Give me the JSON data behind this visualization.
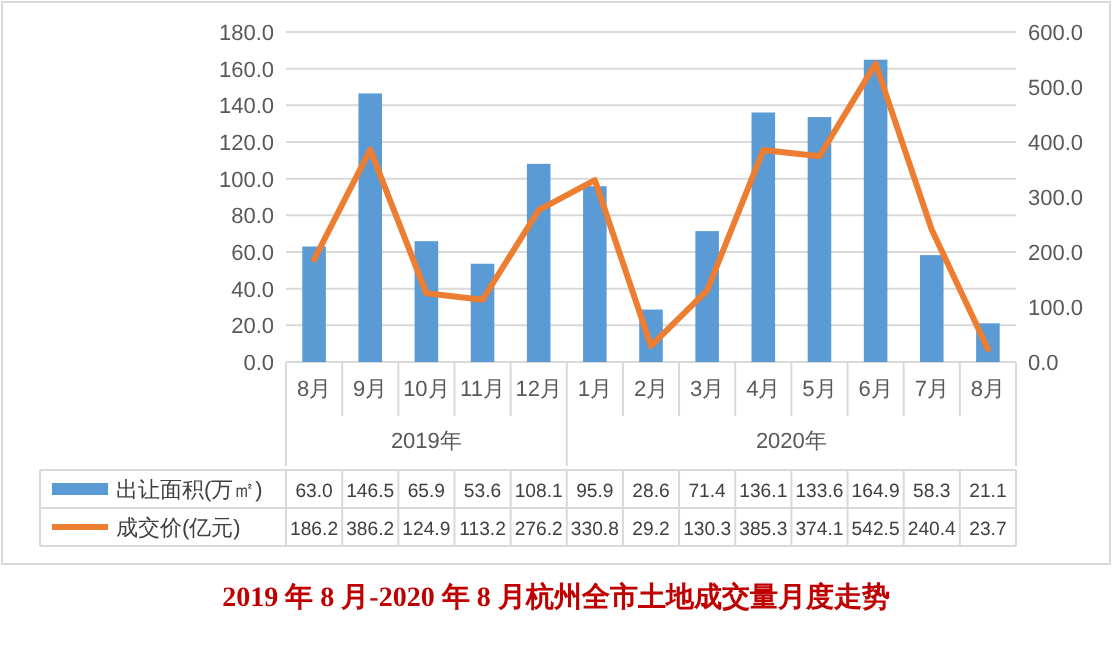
{
  "chart_data": {
    "type": "bar",
    "title": "2019 年 8 月-2020 年 8 月杭州全市土地成交量月度走势",
    "categories": [
      "8月",
      "9月",
      "10月",
      "11月",
      "12月",
      "1月",
      "2月",
      "3月",
      "4月",
      "5月",
      "6月",
      "7月",
      "8月"
    ],
    "annotations": [
      "2019年",
      "2020年"
    ],
    "series": [
      {
        "name": "出让面积(万㎡)",
        "color": "#5b9bd5",
        "values": [
          63.0,
          146.5,
          65.9,
          53.6,
          108.1,
          95.9,
          28.6,
          71.4,
          136.1,
          133.6,
          164.9,
          58.3,
          21.1
        ],
        "value_labels": [
          "63.0",
          "146.5",
          "65.9",
          "53.6",
          "108.1",
          "95.9",
          "28.6",
          "71.4",
          "136.1",
          "133.6",
          "164.9",
          "58.3",
          "21.1"
        ]
      },
      {
        "name": "成交价(亿元)",
        "type": "line",
        "axis": "y2",
        "color": "#ed7d31",
        "values": [
          186.2,
          386.2,
          124.9,
          113.2,
          276.2,
          330.8,
          29.2,
          130.3,
          385.3,
          374.1,
          542.5,
          240.4,
          23.7
        ],
        "value_labels": [
          "186.2",
          "386.2",
          "124.9",
          "113.2",
          "276.2",
          "330.8",
          "29.2",
          "130.3",
          "385.3",
          "374.1",
          "542.5",
          "240.4",
          "23.7"
        ]
      }
    ],
    "ylim": [
      0,
      180
    ],
    "yticks": [
      {
        "value": 0,
        "label": "0.0"
      },
      {
        "value": 20,
        "label": "20.0"
      },
      {
        "value": 40,
        "label": "40.0"
      },
      {
        "value": 60,
        "label": "60.0"
      },
      {
        "value": 80,
        "label": "80.0"
      },
      {
        "value": 100,
        "label": "100.0"
      },
      {
        "value": 120,
        "label": "120.0"
      },
      {
        "value": 140,
        "label": "140.0"
      },
      {
        "value": 160,
        "label": "160.0"
      },
      {
        "value": 180,
        "label": "180.0"
      }
    ],
    "y2lim": [
      0,
      600
    ],
    "y2ticks": [
      {
        "value": 0,
        "label": "0.0"
      },
      {
        "value": 100,
        "label": "100.0"
      },
      {
        "value": 200,
        "label": "200.0"
      },
      {
        "value": 300,
        "label": "300.0"
      },
      {
        "value": 400,
        "label": "400.0"
      },
      {
        "value": 500,
        "label": "500.0"
      },
      {
        "value": 600,
        "label": "600.0"
      }
    ],
    "grid": "y",
    "legend": "bottom",
    "line_style": "solid",
    "marker": "none"
  }
}
